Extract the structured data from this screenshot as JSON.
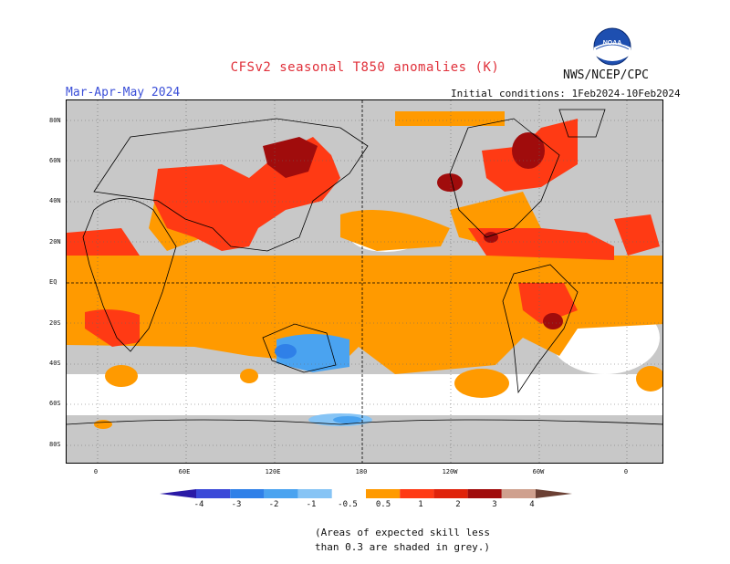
{
  "header": {
    "title": "CFSv2 seasonal T850 anomalies (K)",
    "season": "Mar-Apr-May 2024",
    "agency": "NWS/NCEP/CPC",
    "initial_conditions": "Initial conditions: 1Feb2024-10Feb2024",
    "logo_text": "NOAA"
  },
  "map": {
    "lat_labels": [
      "80N",
      "60N",
      "40N",
      "20N",
      "EQ",
      "20S",
      "40S",
      "60S",
      "80S"
    ],
    "lon_labels": [
      "0",
      "60E",
      "120E",
      "180",
      "120W",
      "60W",
      "0"
    ]
  },
  "colorbar": {
    "labels": [
      "-4",
      "-3",
      "-2",
      "-1",
      "-0.5",
      "0.5",
      "1",
      "2",
      "3",
      "4"
    ],
    "colors": [
      "#2a1aa6",
      "#3b49d8",
      "#2f80e8",
      "#4aa3f0",
      "#86c4f5",
      "#ffffff",
      "#ff9a00",
      "#ff3a14",
      "#e0220a",
      "#a00c0c",
      "#cfa08e",
      "#6b4034"
    ]
  },
  "footnote": {
    "line1": "(Areas of expected skill less",
    "line2": "than 0.3 are shaded in grey.)"
  }
}
